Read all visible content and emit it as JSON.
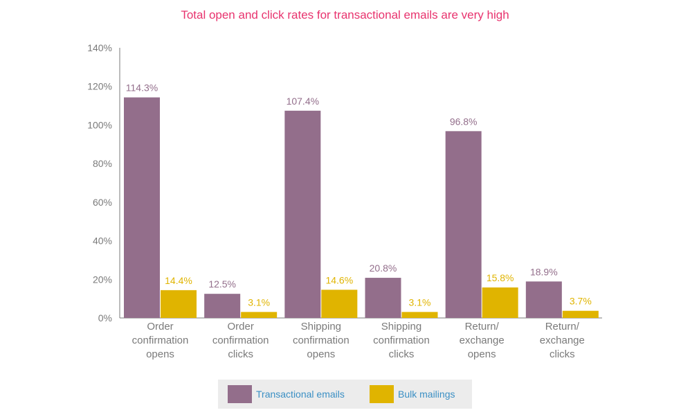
{
  "colors": {
    "title": "#e8336e",
    "transactional": "#936e8b",
    "bulk": "#e0b400",
    "axis": "#7a7a7a",
    "legend_text": "#3a8fc4",
    "legend_bg": "#ececec"
  },
  "chart_data": {
    "type": "bar",
    "title": "Total open and click rates for transactional emails are very high",
    "xlabel": "",
    "ylabel": "",
    "ylim": [
      0,
      140
    ],
    "yticks": [
      "0%",
      "20%",
      "40%",
      "60%",
      "80%",
      "100%",
      "120%",
      "140%"
    ],
    "ytick_values": [
      0,
      20,
      40,
      60,
      80,
      100,
      120,
      140
    ],
    "categories": [
      [
        "Order",
        "confirmation",
        "opens"
      ],
      [
        "Order",
        "confirmation",
        "clicks"
      ],
      [
        "Shipping",
        "confirmation",
        "opens"
      ],
      [
        "Shipping",
        "confirmation",
        "clicks"
      ],
      [
        "Return/",
        "exchange",
        "opens"
      ],
      [
        "Return/",
        "exchange",
        "clicks"
      ]
    ],
    "series": [
      {
        "name": "Transactional emails",
        "values": [
          114.3,
          12.5,
          107.4,
          20.8,
          96.8,
          18.9
        ],
        "labels": [
          "114.3%",
          "12.5%",
          "107.4%",
          "20.8%",
          "96.8%",
          "18.9%"
        ]
      },
      {
        "name": "Bulk mailings",
        "values": [
          14.4,
          3.1,
          14.6,
          3.1,
          15.8,
          3.7
        ],
        "labels": [
          "14.4%",
          "3.1%",
          "14.6%",
          "3.1%",
          "15.8%",
          "3.7%"
        ]
      }
    ],
    "grid": false,
    "legend_position": "bottom"
  }
}
